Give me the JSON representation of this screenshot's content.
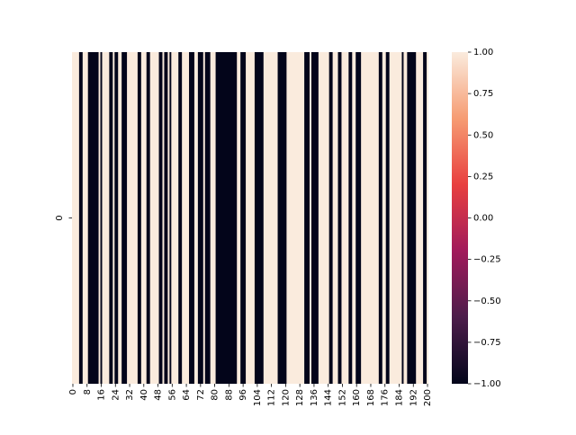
{
  "chart_data": {
    "type": "heatmap",
    "title": "",
    "xlabel": "",
    "ylabel": "",
    "rows": [
      "0"
    ],
    "n_columns": 201,
    "x_ticks": [
      "0",
      "8",
      "16",
      "24",
      "32",
      "40",
      "48",
      "56",
      "64",
      "72",
      "80",
      "88",
      "96",
      "104",
      "112",
      "120",
      "128",
      "136",
      "144",
      "152",
      "160",
      "168",
      "176",
      "184",
      "192",
      "200"
    ],
    "dark_column_runs": [
      [
        4,
        6
      ],
      [
        9,
        15
      ],
      [
        16,
        17
      ],
      [
        21,
        23
      ],
      [
        24,
        26
      ],
      [
        28,
        31
      ],
      [
        37,
        39
      ],
      [
        42,
        44
      ],
      [
        49,
        51
      ],
      [
        52,
        54
      ],
      [
        55,
        56
      ],
      [
        60,
        62
      ],
      [
        66,
        69
      ],
      [
        71,
        74
      ],
      [
        75,
        78
      ],
      [
        81,
        93
      ],
      [
        95,
        98
      ],
      [
        103,
        108
      ],
      [
        116,
        121
      ],
      [
        131,
        134
      ],
      [
        135,
        139
      ],
      [
        145,
        147
      ],
      [
        150,
        152
      ],
      [
        156,
        158
      ],
      [
        160,
        163
      ],
      [
        173,
        175
      ],
      [
        177,
        179
      ],
      [
        186,
        187
      ],
      [
        189,
        194
      ],
      [
        198,
        200
      ]
    ],
    "vmin": -1.0,
    "vmax": 1.0,
    "colorscale": [
      "#03051a",
      "#4c1d4b",
      "#a11a5b",
      "#e83f3f",
      "#f69c73",
      "#faebdd"
    ],
    "colorbar_ticks": [
      "1.00",
      "0.75",
      "0.50",
      "0.25",
      "0.00",
      "−0.25",
      "−0.50",
      "−0.75",
      "−1.00"
    ]
  }
}
